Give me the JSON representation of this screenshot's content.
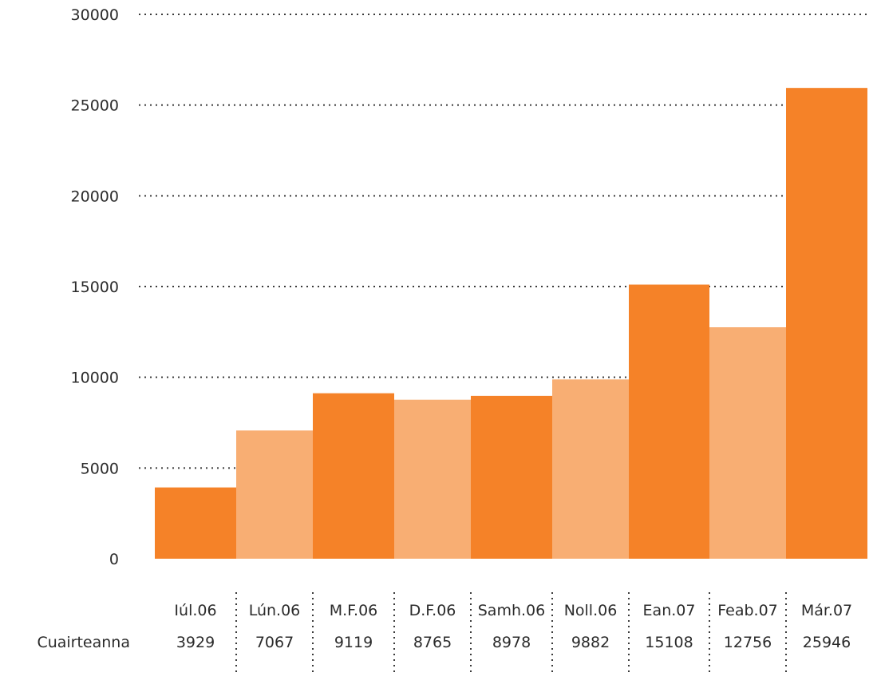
{
  "chart_data": {
    "type": "bar",
    "categories": [
      "Iúl.06",
      "Lún.06",
      "M.F.06",
      "D.F.06",
      "Samh.06",
      "Noll.06",
      "Ean.07",
      "Feab.07",
      "Már.07"
    ],
    "series": [
      {
        "name": "Cuairteanna",
        "values": [
          3929,
          7067,
          9119,
          8765,
          8978,
          9882,
          15108,
          12756,
          25946
        ]
      }
    ],
    "table_row_label": "Cuairteanna",
    "ylim": [
      0,
      30000
    ],
    "yticks": [
      0,
      5000,
      10000,
      15000,
      20000,
      25000,
      30000
    ],
    "ytick_labels": [
      "0",
      "5000",
      "10000",
      "15000",
      "20000",
      "25000",
      "30000"
    ],
    "grid": true,
    "colors": {
      "dark": "#F58228",
      "light": "#F8AE73",
      "text": "#2b2b2b"
    }
  }
}
